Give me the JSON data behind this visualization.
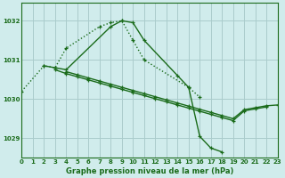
{
  "background_color": "#d0ecec",
  "grid_color": "#aacccc",
  "line_color": "#1a6b1a",
  "title": "Graphe pression niveau de la mer (hPa)",
  "xlim": [
    0,
    23
  ],
  "ylim": [
    1028.5,
    1032.45
  ],
  "yticks": [
    1029,
    1030,
    1031,
    1032
  ],
  "xticks": [
    0,
    1,
    2,
    3,
    4,
    5,
    6,
    7,
    8,
    9,
    10,
    11,
    12,
    13,
    14,
    15,
    16,
    17,
    18,
    19,
    20,
    21,
    22,
    23
  ],
  "s1_x": [
    0,
    2,
    3,
    4,
    7,
    8,
    9,
    10,
    11,
    15,
    16
  ],
  "s1_y": [
    1030.2,
    1030.85,
    1030.8,
    1031.3,
    1031.85,
    1031.95,
    1032.0,
    1031.5,
    1031.0,
    1030.3,
    1030.05
  ],
  "s1_ls": "dotted",
  "s2_x": [
    2,
    3,
    4,
    8,
    9,
    10,
    11,
    14,
    15,
    16,
    17,
    18
  ],
  "s2_y": [
    1030.85,
    1030.8,
    1030.75,
    1031.85,
    1032.0,
    1031.95,
    1031.5,
    1030.6,
    1030.3,
    1029.05,
    1028.75,
    1028.65
  ],
  "s2_ls": "solid",
  "s3_x": [
    3,
    4,
    5,
    6,
    7,
    8,
    9,
    10,
    11,
    12,
    13,
    14,
    15,
    16,
    17,
    18,
    19,
    20,
    21,
    22
  ],
  "s3_y": [
    1030.75,
    1030.65,
    1030.57,
    1030.49,
    1030.41,
    1030.33,
    1030.25,
    1030.17,
    1030.09,
    1030.01,
    1029.93,
    1029.85,
    1029.77,
    1029.69,
    1029.61,
    1029.53,
    1029.45,
    1029.7,
    1029.75,
    1029.8
  ],
  "s3_ls": "solid",
  "s4_x": [
    4,
    5,
    6,
    7,
    8,
    9,
    10,
    11,
    12,
    13,
    14,
    15,
    16,
    17,
    18,
    19,
    20,
    21,
    22,
    23
  ],
  "s4_y": [
    1030.7,
    1030.62,
    1030.54,
    1030.46,
    1030.38,
    1030.3,
    1030.22,
    1030.14,
    1030.06,
    1029.98,
    1029.9,
    1029.82,
    1029.74,
    1029.66,
    1029.58,
    1029.5,
    1029.73,
    1029.78,
    1029.83,
    1029.85
  ],
  "s4_ls": "solid"
}
